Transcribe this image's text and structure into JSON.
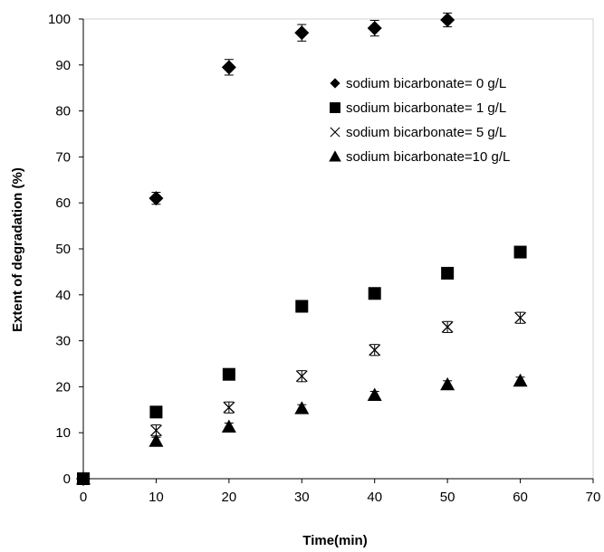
{
  "chart_data": {
    "type": "scatter",
    "xlabel": "Time(min)",
    "ylabel": "Extent of degradation (%)",
    "xlim": [
      0,
      70
    ],
    "ylim": [
      0,
      100
    ],
    "xticks": [
      0,
      10,
      20,
      30,
      40,
      50,
      60,
      70
    ],
    "yticks": [
      0,
      10,
      20,
      30,
      40,
      50,
      60,
      70,
      80,
      90,
      100
    ],
    "grid": false,
    "legend_position": "top-right",
    "series": [
      {
        "name": "sodium bicarbonate= 0 g/L",
        "marker": "diamond",
        "x": [
          0,
          10,
          20,
          30,
          40,
          50
        ],
        "y": [
          0,
          61,
          89.5,
          97,
          98,
          99.8
        ],
        "err": [
          0,
          1.3,
          1.7,
          1.8,
          1.7,
          1.5
        ]
      },
      {
        "name": "sodium bicarbonate= 1 g/L",
        "marker": "square",
        "x": [
          0,
          10,
          20,
          30,
          40,
          50,
          60
        ],
        "y": [
          0,
          14.5,
          22.7,
          37.5,
          40.3,
          44.7,
          49.3
        ],
        "err": [
          0,
          0,
          0,
          0,
          0,
          0,
          0
        ]
      },
      {
        "name": "sodium bicarbonate= 5 g/L",
        "marker": "x",
        "x": [
          0,
          10,
          20,
          30,
          40,
          50,
          60
        ],
        "y": [
          0,
          10.5,
          15.5,
          22.3,
          28,
          33,
          35
        ],
        "err": [
          0,
          1.2,
          1.2,
          1.2,
          1.2,
          1.2,
          1.2
        ]
      },
      {
        "name": "sodium bicarbonate=10 g/L",
        "marker": "triangle",
        "x": [
          0,
          10,
          20,
          30,
          40,
          50,
          60
        ],
        "y": [
          0,
          8.2,
          11.3,
          15.3,
          18.2,
          20.5,
          21.3
        ],
        "err": [
          0,
          0.8,
          0.8,
          0.8,
          0.8,
          0.8,
          0.8
        ]
      }
    ]
  }
}
